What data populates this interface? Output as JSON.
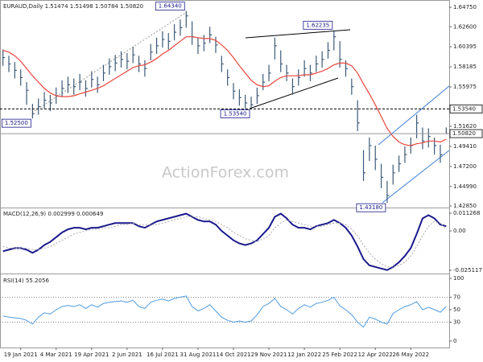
{
  "chart_data": [
    {
      "type": "ohlc",
      "title": "EURAUD,Daily 1.51474 1.51498 1.50784 1.50820",
      "watermark": "ActionForex.com",
      "categories": [
        null,
        null,
        null,
        "19 Jan 2021",
        null,
        null,
        null,
        null,
        null,
        "4 Mar 2021",
        null,
        null,
        null,
        null,
        null,
        "19 Apr 2021",
        null,
        null,
        null,
        null,
        null,
        "2 Jun 2021",
        null,
        null,
        null,
        null,
        null,
        "16 Jul 2021",
        null,
        null,
        null,
        null,
        null,
        "31 Aug 2021",
        null,
        null,
        null,
        null,
        null,
        "14 Oct 2021",
        null,
        null,
        null,
        null,
        null,
        "29 Nov 2021",
        null,
        null,
        null,
        null,
        null,
        "12 Jan 2022",
        null,
        null,
        null,
        null,
        null,
        "25 Feb 2022",
        null,
        null,
        null,
        null,
        null,
        "12 Apr 2022",
        null,
        null,
        null,
        null,
        null,
        "26 May 2022",
        null,
        null,
        null,
        null,
        null,
        null
      ],
      "high": [
        1.601,
        1.594,
        1.587,
        1.579,
        1.565,
        1.541,
        1.547,
        1.554,
        1.551,
        1.559,
        1.567,
        1.571,
        1.569,
        1.574,
        1.567,
        1.577,
        1.571,
        1.584,
        1.591,
        1.595,
        1.599,
        1.597,
        1.604,
        1.594,
        1.589,
        1.607,
        1.614,
        1.621,
        1.619,
        1.629,
        1.634,
        1.6434,
        1.632,
        1.614,
        1.617,
        1.626,
        1.615,
        1.594,
        1.579,
        1.564,
        1.557,
        1.551,
        1.549,
        1.559,
        1.574,
        1.584,
        1.614,
        1.6,
        1.584,
        1.569,
        1.579,
        1.589,
        1.584,
        1.594,
        1.599,
        1.609,
        1.6224,
        1.61,
        1.589,
        1.569,
        1.545,
        1.49,
        1.504,
        1.495,
        1.475,
        1.456,
        1.474,
        1.484,
        1.494,
        1.504,
        1.529,
        1.515,
        1.514,
        1.504,
        1.496,
        1.515
      ],
      "low": [
        1.583,
        1.576,
        1.569,
        1.561,
        1.54,
        1.525,
        1.529,
        1.536,
        1.533,
        1.541,
        1.549,
        1.553,
        1.551,
        1.556,
        1.549,
        1.559,
        1.553,
        1.566,
        1.573,
        1.577,
        1.581,
        1.579,
        1.586,
        1.576,
        1.571,
        1.589,
        1.596,
        1.603,
        1.601,
        1.611,
        1.616,
        1.625,
        1.606,
        1.596,
        1.599,
        1.608,
        1.597,
        1.576,
        1.561,
        1.546,
        1.539,
        1.536,
        1.5354,
        1.541,
        1.556,
        1.566,
        1.59,
        1.576,
        1.566,
        1.551,
        1.561,
        1.571,
        1.566,
        1.576,
        1.581,
        1.591,
        1.6,
        1.581,
        1.571,
        1.551,
        1.511,
        1.456,
        1.478,
        1.468,
        1.448,
        1.4318,
        1.452,
        1.466,
        1.476,
        1.486,
        1.503,
        1.491,
        1.493,
        1.485,
        1.476,
        1.5078
      ],
      "close": [
        1.592,
        1.585,
        1.578,
        1.57,
        1.556,
        1.53,
        1.538,
        1.545,
        1.542,
        1.55,
        1.558,
        1.562,
        1.56,
        1.565,
        1.558,
        1.568,
        1.562,
        1.575,
        1.582,
        1.586,
        1.59,
        1.588,
        1.595,
        1.585,
        1.58,
        1.598,
        1.605,
        1.612,
        1.61,
        1.62,
        1.625,
        1.638,
        1.615,
        1.605,
        1.608,
        1.617,
        1.606,
        1.585,
        1.57,
        1.555,
        1.548,
        1.542,
        1.54,
        1.55,
        1.565,
        1.575,
        1.605,
        1.585,
        1.575,
        1.56,
        1.57,
        1.58,
        1.575,
        1.585,
        1.59,
        1.6,
        1.615,
        1.59,
        1.58,
        1.56,
        1.52,
        1.465,
        1.495,
        1.48,
        1.46,
        1.44,
        1.465,
        1.475,
        1.485,
        1.495,
        1.52,
        1.5,
        1.505,
        1.495,
        1.485,
        1.5082
      ],
      "color": "#3c5a78",
      "ma_values": [
        1.6,
        1.598,
        1.594,
        1.588,
        1.58,
        1.572,
        1.565,
        1.558,
        1.553,
        1.55,
        1.549,
        1.549,
        1.55,
        1.552,
        1.554,
        1.556,
        1.558,
        1.561,
        1.565,
        1.569,
        1.573,
        1.577,
        1.581,
        1.583,
        1.584,
        1.587,
        1.591,
        1.596,
        1.6,
        1.605,
        1.61,
        1.615,
        1.615,
        1.614,
        1.613,
        1.613,
        1.611,
        1.606,
        1.6,
        1.592,
        1.583,
        1.575,
        1.567,
        1.562,
        1.56,
        1.561,
        1.566,
        1.57,
        1.572,
        1.572,
        1.572,
        1.573,
        1.573,
        1.575,
        1.577,
        1.58,
        1.584,
        1.586,
        1.586,
        1.583,
        1.575,
        1.563,
        1.552,
        1.54,
        1.527,
        1.514,
        1.505,
        1.499,
        1.496,
        1.495,
        1.497,
        1.498,
        1.5,
        1.5,
        1.499,
        1.502
      ],
      "ma_color": "#e8453c",
      "ylim": [
        1.4267,
        1.6555
      ],
      "yticks": [
        {
          "value": 1.6475,
          "label": "1.64750"
        },
        {
          "value": 1.626,
          "label": "1.62600"
        },
        {
          "value": 1.60395,
          "label": "1.60395"
        },
        {
          "value": 1.58185,
          "label": "1.58185"
        },
        {
          "value": 1.55975,
          "label": "1.55975"
        },
        {
          "value": 1.5162,
          "label": "1.51620"
        },
        {
          "value": 1.4941,
          "label": "1.49410"
        },
        {
          "value": 1.472,
          "label": "1.47200"
        },
        {
          "value": 1.4499,
          "label": "1.44990"
        },
        {
          "value": 1.4285,
          "label": "1.42850"
        }
      ],
      "price_lines": [
        {
          "value": 1.5354,
          "label": "1.53540",
          "style": "dashed"
        },
        {
          "value": 1.5082,
          "label": "1.50820",
          "style": "solid"
        }
      ],
      "annotations": [
        {
          "value": 1.6434,
          "label": "1.64340",
          "bar": 31
        },
        {
          "value": 1.525,
          "label": "1.52500",
          "bar": 5
        },
        {
          "value": 1.5354,
          "label": "1.53540",
          "bar": 42
        },
        {
          "value": 1.6224,
          "label": "1.62235",
          "bar": 56
        },
        {
          "value": 1.4318,
          "label": "1.43180",
          "bar": 65
        }
      ]
    },
    {
      "type": "line",
      "title": "MACD(12,26,9) 0.002999 0.000649",
      "series": [
        {
          "color": "#1a1a8c",
          "style": "solid",
          "values": [
            -0.013,
            -0.012,
            -0.011,
            -0.011,
            -0.012,
            -0.014,
            -0.012,
            -0.009,
            -0.007,
            -0.004,
            -0.001,
            0.001,
            0.002,
            0.002,
            0.001,
            0.002,
            0.002,
            0.003,
            0.004,
            0.005,
            0.005,
            0.005,
            0.005,
            0.003,
            0.002,
            0.004,
            0.006,
            0.007,
            0.008,
            0.009,
            0.01,
            0.011,
            0.009,
            0.007,
            0.006,
            0.006,
            0.004,
            0.0,
            -0.003,
            -0.006,
            -0.008,
            -0.009,
            -0.008,
            -0.006,
            -0.002,
            0.002,
            0.009,
            0.011,
            0.008,
            0.004,
            0.002,
            0.002,
            0.001,
            0.003,
            0.004,
            0.005,
            0.007,
            0.005,
            0.002,
            -0.003,
            -0.01,
            -0.018,
            -0.022,
            -0.023,
            -0.024,
            -0.025,
            -0.023,
            -0.02,
            -0.016,
            -0.011,
            -0.002,
            0.008,
            0.01,
            0.008,
            0.004,
            0.003
          ]
        },
        {
          "color": "#aaaaaa",
          "style": "dashed",
          "values": [
            -0.01,
            -0.011,
            -0.011,
            -0.011,
            -0.011,
            -0.012,
            -0.012,
            -0.011,
            -0.01,
            -0.008,
            -0.006,
            -0.004,
            -0.002,
            -0.001,
            0.0,
            0.001,
            0.001,
            0.002,
            0.002,
            0.003,
            0.004,
            0.004,
            0.005,
            0.004,
            0.004,
            0.004,
            0.004,
            0.005,
            0.006,
            0.007,
            0.008,
            0.009,
            0.009,
            0.009,
            0.008,
            0.007,
            0.006,
            0.004,
            0.002,
            -0.001,
            -0.003,
            -0.005,
            -0.006,
            -0.007,
            -0.005,
            -0.003,
            0.002,
            0.005,
            0.007,
            0.006,
            0.005,
            0.004,
            0.003,
            0.003,
            0.003,
            0.004,
            0.005,
            0.005,
            0.004,
            0.001,
            -0.003,
            -0.009,
            -0.014,
            -0.018,
            -0.021,
            -0.023,
            -0.023,
            -0.022,
            -0.02,
            -0.016,
            -0.01,
            -0.003,
            0.003,
            0.006,
            0.005,
            0.001
          ]
        }
      ],
      "ylim": [
        -0.0272,
        0.0149
      ],
      "yticks": [
        0.011268,
        {
          "value": 0,
          "label": "0.00"
        },
        -0.025117
      ]
    },
    {
      "type": "line",
      "title": "RSI(14) 55.2056",
      "series": [
        {
          "color": "#4f9be0",
          "style": "solid",
          "values": [
            40,
            38,
            37,
            36,
            33,
            27,
            38,
            45,
            43,
            50,
            55,
            57,
            55,
            58,
            52,
            58,
            54,
            60,
            62,
            63,
            64,
            62,
            65,
            55,
            52,
            62,
            65,
            67,
            64,
            68,
            70,
            72,
            55,
            48,
            52,
            58,
            48,
            38,
            33,
            30,
            32,
            30,
            32,
            42,
            55,
            60,
            68,
            55,
            50,
            43,
            52,
            58,
            54,
            60,
            62,
            65,
            70,
            56,
            50,
            42,
            30,
            22,
            38,
            35,
            30,
            27,
            44,
            50,
            55,
            58,
            63,
            50,
            54,
            50,
            46,
            55
          ]
        }
      ],
      "ylim": [
        -10.5,
        107.9
      ],
      "yticks": [
        100,
        70,
        50,
        30,
        0
      ],
      "levels": [
        70,
        30
      ]
    }
  ]
}
